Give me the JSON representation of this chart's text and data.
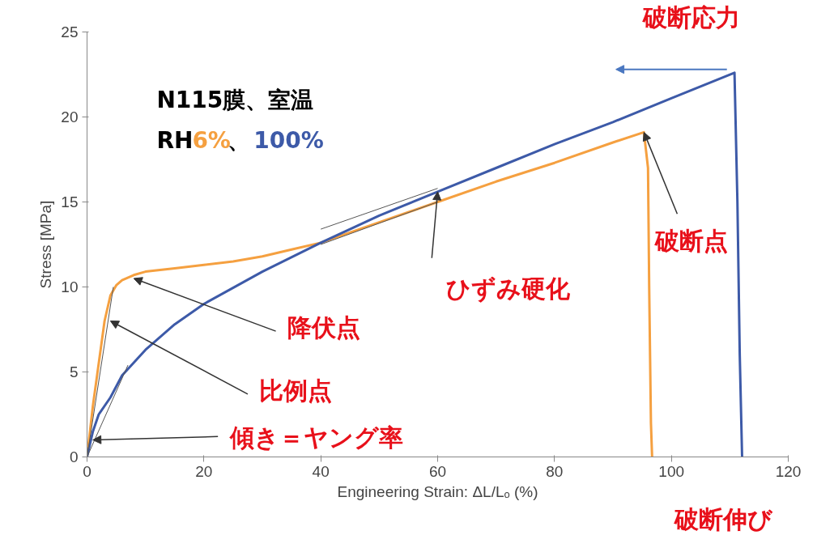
{
  "chart_data": {
    "type": "line",
    "xlabel": "Engineering Strain: ΔL/Lₒ (%)",
    "ylabel": "Stress [MPa]",
    "legend_title": "N115膜、室温",
    "xlim": [
      0,
      120
    ],
    "ylim": [
      0,
      25
    ],
    "xticks": [
      0,
      20,
      40,
      60,
      80,
      100,
      120
    ],
    "yticks": [
      0,
      5,
      10,
      15,
      20,
      25
    ],
    "grid": false,
    "legend": "top left",
    "line_style": "solid",
    "marker": "none",
    "series": [
      {
        "name": "6%",
        "color": "#f5a040",
        "x": [
          0,
          1,
          2,
          3,
          4,
          5,
          6,
          8,
          10,
          15,
          20,
          25,
          30,
          35,
          40,
          50,
          60,
          70,
          80,
          90,
          95.3,
          96,
          96.2,
          96.5,
          96.7
        ],
        "values": [
          0,
          3,
          5.5,
          8,
          9.5,
          10.1,
          10.4,
          10.7,
          10.9,
          11.1,
          11.3,
          11.5,
          11.8,
          12.2,
          12.6,
          13.8,
          15,
          16.2,
          17.3,
          18.5,
          19.1,
          17,
          10,
          2,
          0
        ]
      },
      {
        "name": "100%",
        "color": "#3d5aa8",
        "x": [
          0,
          1,
          2,
          4,
          6,
          10,
          15,
          20,
          30,
          40,
          50,
          60,
          70,
          80,
          90,
          100,
          110.8,
          111.3,
          111.7,
          112.1
        ],
        "values": [
          0,
          1.5,
          2.5,
          3.5,
          4.8,
          6.3,
          7.8,
          9,
          10.9,
          12.6,
          14.2,
          15.6,
          17,
          18.4,
          19.7,
          21.1,
          22.6,
          15,
          6,
          0
        ]
      },
      {
        "color": "#555555",
        "x": [
          0,
          4.5
        ],
        "values": [
          0,
          10
        ]
      },
      {
        "color": "#555555",
        "x": [
          0,
          7
        ],
        "values": [
          0,
          5.4
        ]
      },
      {
        "color": "#555555",
        "x": [
          40,
          60
        ],
        "values": [
          12.5,
          15
        ]
      },
      {
        "color": "#555555",
        "x": [
          40,
          60
        ],
        "values": [
          13.4,
          15.8
        ]
      }
    ],
    "annotations": [
      "破断応力",
      {
        "text": "破断点",
        "x": 95.3,
        "y": 19.1
      },
      {
        "text": "ひずみ硬化",
        "x": 60,
        "y": 15.6
      },
      {
        "text": "降伏点",
        "x": 8,
        "y": 10.5
      },
      {
        "text": "比例点",
        "x": 4,
        "y": 8
      },
      {
        "text": "傾き＝ヤング率",
        "x": 1,
        "y": 1
      },
      "破断伸び",
      "RH",
      "、"
    ]
  }
}
